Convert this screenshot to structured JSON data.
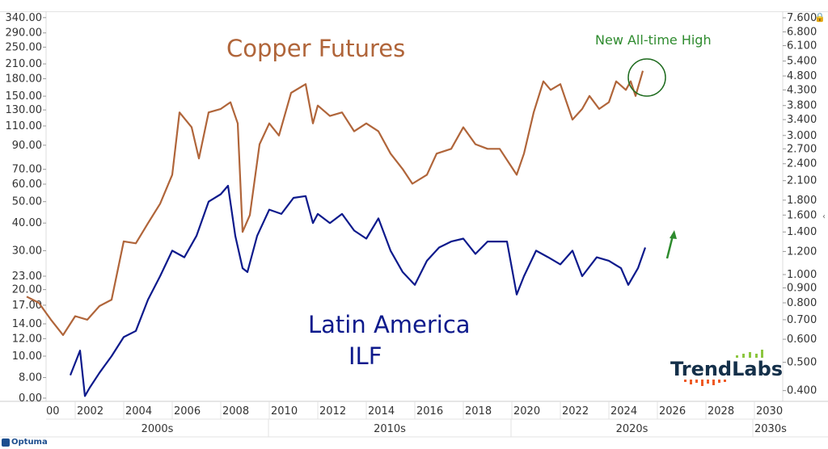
{
  "chart_data": {
    "type": "line",
    "title": "",
    "annotations": {
      "copper_label": "Copper Futures",
      "ilf_label_line1": "Latin America",
      "ilf_label_line2": "ILF",
      "new_high": "New All-time High"
    },
    "colors": {
      "copper": "#b0653a",
      "ilf": "#0d1a8c",
      "annotation": "#2e8b2e"
    },
    "left_axis": {
      "scale": "log",
      "ticks": [
        340,
        290,
        250,
        210,
        180,
        150,
        130,
        110,
        90,
        70,
        60,
        50,
        40,
        30,
        23,
        20,
        17,
        14,
        12,
        10,
        8
      ],
      "tick_labels": [
        "340.00",
        "290.00",
        "250.00",
        "210.00",
        "180.00",
        "150.00",
        "130.00",
        "110.00",
        "90.00",
        "70.00",
        "60.00",
        "50.00",
        "40.00",
        "30.00",
        "23.00",
        "20.00",
        "17.00",
        "14.00",
        "12.00",
        "10.00",
        "8.00"
      ],
      "bottom_label": "0.00"
    },
    "right_axis": {
      "scale": "log",
      "ticks": [
        7.6,
        6.8,
        6.1,
        5.4,
        4.8,
        4.3,
        3.8,
        3.4,
        3.0,
        2.7,
        2.4,
        2.1,
        1.8,
        1.6,
        1.4,
        1.2,
        1.0,
        0.9,
        0.8,
        0.7,
        0.6,
        0.5,
        0.4
      ],
      "tick_labels": [
        "7.600",
        "6.800",
        "6.100",
        "5.400",
        "4.800",
        "4.300",
        "3.800",
        "3.400",
        "3.000",
        "2.700",
        "2.400",
        "2.100",
        "1.800",
        "1.600",
        "1.400",
        "1.200",
        "1.000",
        "0.900",
        "0.800",
        "0.700",
        "0.600",
        "0.500",
        "0.400"
      ]
    },
    "x_axis": {
      "year_ticks": [
        "00",
        "2002",
        "2004",
        "2006",
        "2008",
        "2010",
        "2012",
        "2014",
        "2016",
        "2018",
        "2020",
        "2022",
        "2024",
        "2026",
        "2028",
        "2030"
      ],
      "decades": [
        "2000s",
        "2010s",
        "2020s",
        "2030s"
      ]
    },
    "series": [
      {
        "key": "copper",
        "axis": "right",
        "x": [
          2000,
          2000.5,
          2001,
          2001.5,
          2002,
          2002.5,
          2003,
          2003.5,
          2004,
          2004.5,
          2005,
          2005.5,
          2006,
          2006.3,
          2006.8,
          2007.1,
          2007.5,
          2008,
          2008.4,
          2008.7,
          2008.9,
          2009.2,
          2009.6,
          2010,
          2010.4,
          2010.9,
          2011.5,
          2011.8,
          2012,
          2012.5,
          2013,
          2013.5,
          2014,
          2014.5,
          2015,
          2015.5,
          2015.9,
          2016.5,
          2016.9,
          2017.5,
          2018,
          2018.5,
          2019,
          2019.5,
          2020.2,
          2020.5,
          2020.9,
          2021.3,
          2021.6,
          2022,
          2022.5,
          2022.9,
          2023.2,
          2023.6,
          2024,
          2024.3,
          2024.7,
          2024.9,
          2025.1,
          2025.4
        ],
        "y": [
          0.84,
          0.8,
          0.7,
          0.62,
          0.72,
          0.7,
          0.78,
          0.82,
          1.3,
          1.28,
          1.5,
          1.75,
          2.2,
          3.6,
          3.2,
          2.5,
          3.6,
          3.7,
          3.9,
          3.3,
          1.4,
          1.6,
          2.8,
          3.3,
          3.0,
          4.2,
          4.5,
          3.3,
          3.8,
          3.5,
          3.6,
          3.1,
          3.3,
          3.1,
          2.6,
          2.3,
          2.05,
          2.2,
          2.6,
          2.7,
          3.2,
          2.8,
          2.7,
          2.7,
          2.2,
          2.6,
          3.6,
          4.6,
          4.3,
          4.5,
          3.4,
          3.7,
          4.1,
          3.7,
          3.9,
          4.6,
          4.3,
          4.6,
          4.1,
          5.0
        ]
      },
      {
        "key": "ilf",
        "axis": "left",
        "x": [
          2001.8,
          2002.2,
          2002.4,
          2002.6,
          2003,
          2003.5,
          2004,
          2004.5,
          2005,
          2005.5,
          2006,
          2006.5,
          2007,
          2007.5,
          2008,
          2008.3,
          2008.6,
          2008.9,
          2009.1,
          2009.5,
          2010,
          2010.5,
          2011,
          2011.5,
          2011.8,
          2012,
          2012.5,
          2013,
          2013.5,
          2014,
          2014.5,
          2015,
          2015.5,
          2016,
          2016.5,
          2017,
          2017.5,
          2018,
          2018.5,
          2019,
          2019.8,
          2020.2,
          2020.5,
          2021,
          2021.5,
          2022,
          2022.5,
          2022.9,
          2023.5,
          2024,
          2024.5,
          2024.8,
          2025.2,
          2025.5
        ],
        "y": [
          8.2,
          10.6,
          6.6,
          7.2,
          8.4,
          10,
          12.2,
          13,
          18,
          23,
          30,
          28,
          35,
          50,
          54,
          59,
          35,
          25,
          24,
          35,
          46,
          44,
          52,
          53,
          40,
          44,
          40,
          44,
          37,
          34,
          42,
          30,
          24,
          21,
          27,
          31,
          33,
          34,
          29,
          33,
          33,
          19,
          23,
          30,
          28,
          26,
          30,
          23,
          28,
          27,
          25,
          21,
          25,
          31
        ]
      }
    ]
  },
  "footer": {
    "brand": "Optuma",
    "logo_text": "TrendLabs"
  }
}
